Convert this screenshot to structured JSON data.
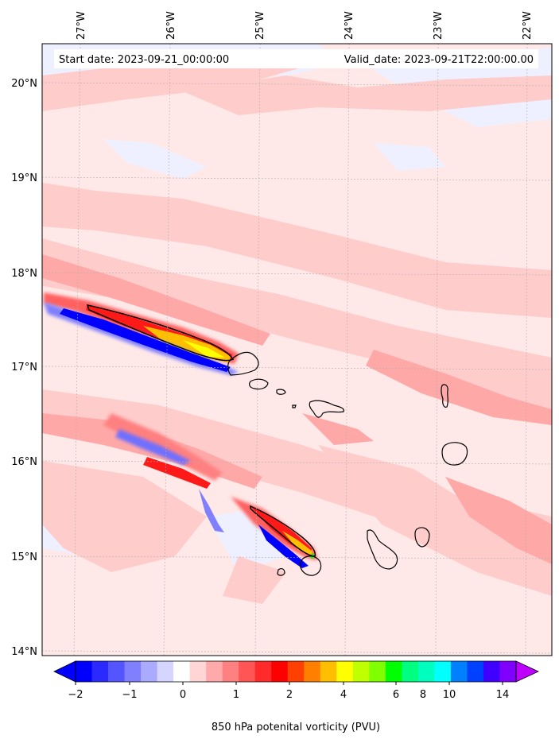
{
  "header": {
    "start_date": "Start date: 2023-09-21_00:00:00",
    "valid_date": "Valid_date: 2023-09-21T22:00:00.00"
  },
  "axes": {
    "lon_labels": [
      "27°W",
      "26°W",
      "25°W",
      "24°W",
      "23°W",
      "22°W"
    ],
    "lat_labels": [
      "20°N",
      "19°N",
      "18°N",
      "17°N",
      "16°N",
      "15°N",
      "14°N"
    ]
  },
  "colorbar": {
    "ticks": [
      "−2",
      "−1",
      "0",
      "1",
      "2",
      "4",
      "6",
      "8",
      "10",
      "14"
    ],
    "label": "850 hPa potenital vorticity (PVU)",
    "colors": [
      "#0000ff",
      "#2a2aff",
      "#5555ff",
      "#8080ff",
      "#aaaaff",
      "#d5d5ff",
      "#ffffff",
      "#ffd5d5",
      "#ffaaaa",
      "#ff8080",
      "#ff5555",
      "#ff2a2a",
      "#ff0000",
      "#ff4000",
      "#ff8000",
      "#ffbf00",
      "#ffff00",
      "#bfff00",
      "#80ff00",
      "#00ff00",
      "#00ff80",
      "#00ffbf",
      "#00ffff",
      "#0080ff",
      "#0040ff",
      "#4000ff",
      "#8000ff"
    ]
  },
  "map": {
    "colors": {
      "faint_pink": "#ffe8e8",
      "light_pink": "#ffcccc",
      "pink": "#ffa8a8",
      "red": "#ff1a1a",
      "orange": "#ffbf00",
      "blue": "#2a2aff",
      "light_blue": "#eef0ff"
    }
  }
}
